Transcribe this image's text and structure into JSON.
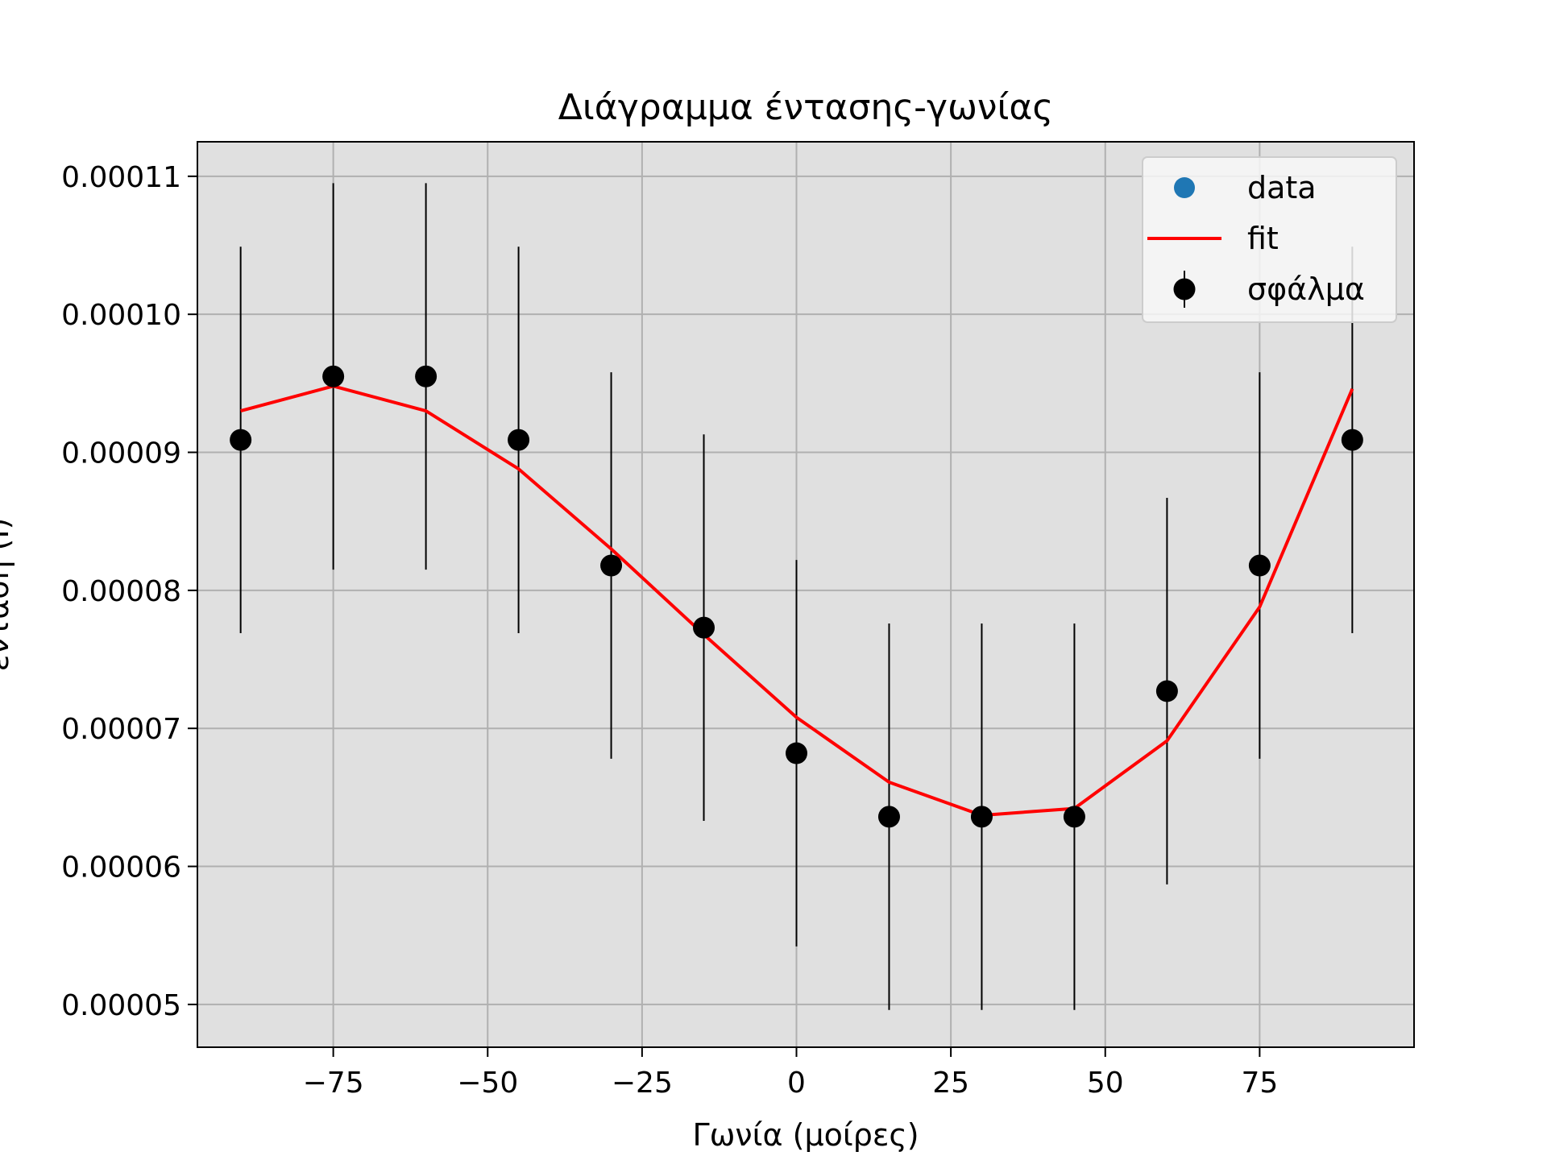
{
  "chart_data": {
    "type": "scatter",
    "title": "Διάγραμμα έντασης-γωνίας",
    "xlabel": "Γωνία (μοίρες)",
    "ylabel": "ένταση (I)",
    "xlim": [
      -97,
      100
    ],
    "ylim": [
      4.69e-05,
      0.0001125
    ],
    "x_ticks": [
      -75,
      -50,
      -25,
      0,
      25,
      50,
      75
    ],
    "x_tick_labels": [
      "−75",
      "−50",
      "−25",
      "0",
      "25",
      "50",
      "75"
    ],
    "y_ticks": [
      5e-05,
      6e-05,
      7e-05,
      8e-05,
      9e-05,
      0.0001,
      0.00011
    ],
    "y_tick_labels": [
      "0.00005",
      "0.00006",
      "0.00007",
      "0.00008",
      "0.00009",
      "0.00010",
      "0.00011"
    ],
    "grid": true,
    "legend_position": "top-right",
    "x": [
      -90,
      -75,
      -60,
      -45,
      -30,
      -15,
      0,
      15,
      30,
      45,
      60,
      75,
      90
    ],
    "series": [
      {
        "name": "data",
        "kind": "points",
        "color": "#1f77b4",
        "values": [
          9.09e-05,
          9.55e-05,
          9.55e-05,
          9.09e-05,
          8.18e-05,
          7.73e-05,
          6.82e-05,
          6.36e-05,
          6.36e-05,
          6.36e-05,
          7.27e-05,
          8.18e-05,
          9.09e-05
        ]
      },
      {
        "name": "fit",
        "kind": "line",
        "color": "#ff0000",
        "values": [
          9.3e-05,
          9.48e-05,
          9.3e-05,
          8.88e-05,
          8.3e-05,
          7.68e-05,
          7.08e-05,
          6.61e-05,
          6.37e-05,
          6.42e-05,
          6.91e-05,
          7.88e-05,
          9.46e-05
        ]
      },
      {
        "name": "σφάλμα",
        "kind": "errorbar",
        "color": "#000000",
        "values": [
          9.09e-05,
          9.55e-05,
          9.55e-05,
          9.09e-05,
          8.18e-05,
          7.73e-05,
          6.82e-05,
          6.36e-05,
          6.36e-05,
          6.36e-05,
          7.27e-05,
          8.18e-05,
          9.09e-05
        ],
        "errors": [
          1.4e-05,
          1.4e-05,
          1.4e-05,
          1.4e-05,
          1.4e-05,
          1.4e-05,
          1.4e-05,
          1.4e-05,
          1.4e-05,
          1.4e-05,
          1.4e-05,
          1.4e-05,
          1.4e-05
        ]
      }
    ]
  },
  "colors": {
    "plot_background": "#e0e0e0",
    "grid": "#b0b0b0",
    "legend_background": "#f7f7f7"
  }
}
